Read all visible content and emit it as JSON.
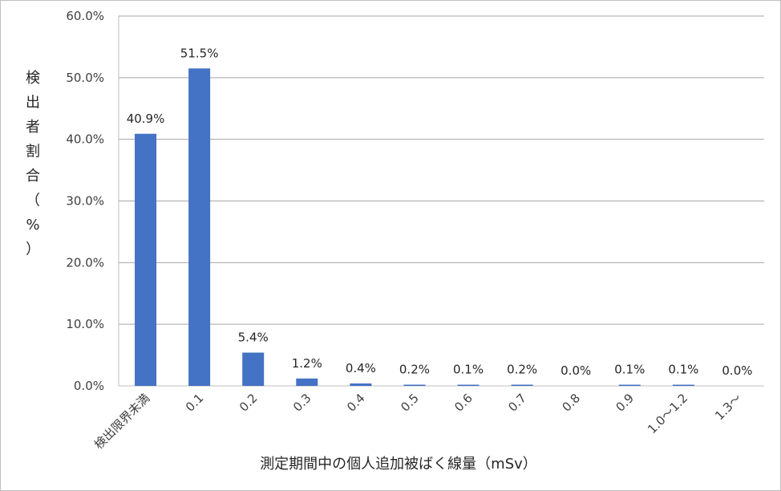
{
  "chart_data": {
    "type": "bar",
    "categories": [
      "検出限界未満",
      "0.1",
      "0.2",
      "0.3",
      "0.4",
      "0.5",
      "0.6",
      "0.7",
      "0.8",
      "0.9",
      "1.0～1.2",
      "1.3～"
    ],
    "values": [
      40.9,
      51.5,
      5.4,
      1.2,
      0.4,
      0.2,
      0.1,
      0.2,
      0.0,
      0.1,
      0.1,
      0.0
    ],
    "data_labels": [
      "40.9%",
      "51.5%",
      "5.4%",
      "1.2%",
      "0.4%",
      "0.2%",
      "0.1%",
      "0.2%",
      "0.0%",
      "0.1%",
      "0.1%",
      "0.0%"
    ],
    "y_ticks": [
      0,
      10,
      20,
      30,
      40,
      50,
      60
    ],
    "y_tick_labels": [
      "0.0%",
      "10.0%",
      "20.0%",
      "30.0%",
      "40.0%",
      "50.0%",
      "60.0%"
    ],
    "ylim": [
      0,
      60
    ],
    "ylabel": "検出者割合（%）",
    "ylabel_chars": [
      "検",
      "出",
      "者",
      "割",
      "合",
      "（",
      "%",
      "）"
    ],
    "xlabel": "測定期間中の個人追加被ばく線量（mSv）",
    "grid": true,
    "legend": "none",
    "colors": {
      "bar": "#4472c4",
      "grid": "#a6a6a6",
      "axis": "#bfbfbf"
    }
  }
}
